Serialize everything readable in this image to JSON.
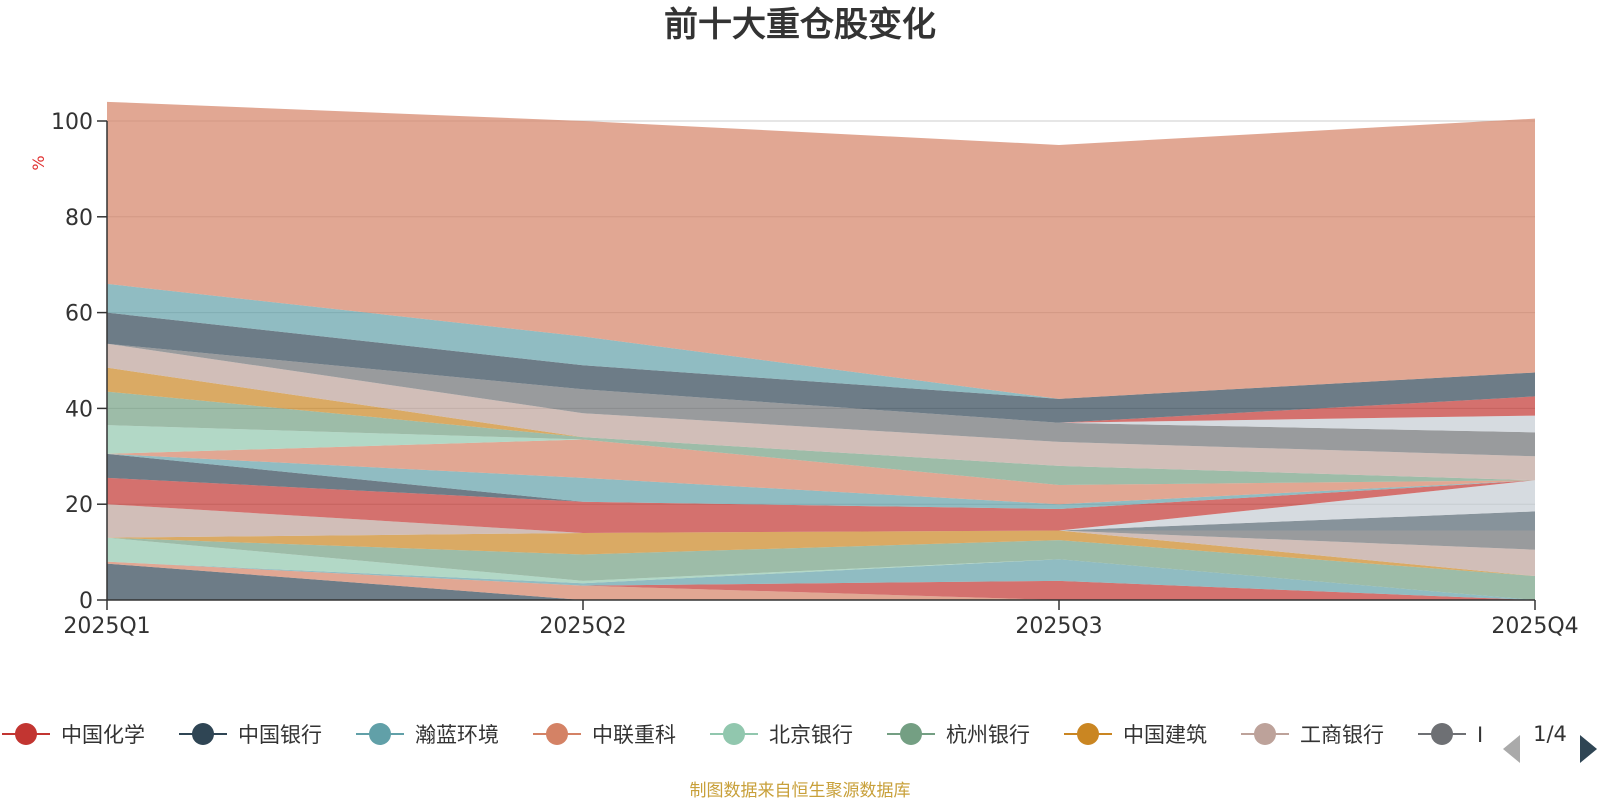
{
  "chart_data": {
    "type": "area",
    "stacked": true,
    "title": "前十大重仓股变化",
    "ylabel": "%",
    "categories": [
      "2025Q1",
      "2025Q2",
      "2025Q3",
      "2025Q4"
    ],
    "ylim": [
      0,
      100
    ],
    "yticks": [
      0,
      20,
      40,
      60,
      80,
      100
    ],
    "grid": true,
    "legend_position": "bottom",
    "legend_page": "1/4",
    "legend_truncated_item": "I",
    "source": "制图数据来自恒生聚源数据库",
    "series": [
      {
        "name": "",
        "color": "#2f4554",
        "values": [
          7.6,
          0.0,
          0.0,
          0.0
        ]
      },
      {
        "name": "",
        "color": "#d48265",
        "values": [
          0.4,
          3.0,
          0.0,
          0.0
        ]
      },
      {
        "name": "",
        "color": "#c23531",
        "values": [
          0.0,
          0.0,
          4.0,
          0.0
        ]
      },
      {
        "name": "",
        "color": "#61a0a8",
        "values": [
          0.0,
          0.5,
          4.5,
          0.0
        ]
      },
      {
        "name": "",
        "color": "#91c7ae",
        "values": [
          5.0,
          0.5,
          0.0,
          0.0
        ]
      },
      {
        "name": "",
        "color": "#749f83",
        "values": [
          0.0,
          5.5,
          4.0,
          5.0
        ]
      },
      {
        "name": "",
        "color": "#ca8622",
        "values": [
          0.0,
          4.5,
          2.0,
          0.0
        ]
      },
      {
        "name": "",
        "color": "#bda29a",
        "values": [
          7.0,
          0.0,
          0.0,
          5.5
        ]
      },
      {
        "name": "",
        "color": "#6e7074",
        "values": [
          0.0,
          0.0,
          0.0,
          4.0
        ]
      },
      {
        "name": "",
        "color": "#546570",
        "values": [
          0.0,
          0.0,
          0.0,
          4.0
        ]
      },
      {
        "name": "",
        "color": "#c4ccd3",
        "values": [
          0.0,
          0.0,
          0.0,
          6.5
        ]
      },
      {
        "name": "",
        "color": "#c23531",
        "values": [
          5.5,
          6.5,
          4.5,
          0.0
        ]
      },
      {
        "name": "",
        "color": "#2f4554",
        "values": [
          5.0,
          0.0,
          0.0,
          0.0
        ]
      },
      {
        "name": "",
        "color": "#61a0a8",
        "values": [
          0.0,
          5.0,
          1.0,
          0.0
        ]
      },
      {
        "name": "",
        "color": "#d48265",
        "values": [
          0.0,
          8.0,
          4.0,
          0.0
        ]
      },
      {
        "name": "",
        "color": "#91c7ae",
        "values": [
          6.0,
          0.0,
          0.0,
          0.0
        ]
      },
      {
        "name": "",
        "color": "#749f83",
        "values": [
          7.0,
          0.5,
          4.0,
          0.0
        ]
      },
      {
        "name": "",
        "color": "#ca8622",
        "values": [
          5.0,
          0.0,
          0.0,
          0.0
        ]
      },
      {
        "name": "",
        "color": "#bda29a",
        "values": [
          5.0,
          5.0,
          5.0,
          5.0
        ]
      },
      {
        "name": "",
        "color": "#6e7074",
        "values": [
          0.0,
          5.0,
          4.0,
          5.0
        ]
      },
      {
        "name": "",
        "color": "#c4ccd3",
        "values": [
          0.0,
          0.0,
          0.0,
          3.5
        ]
      },
      {
        "name": "",
        "color": "#c23531",
        "values": [
          0.0,
          0.0,
          0.0,
          4.0
        ]
      },
      {
        "name": "",
        "color": "#2f4554",
        "values": [
          6.5,
          5.0,
          5.0,
          5.0
        ]
      },
      {
        "name": "",
        "color": "#61a0a8",
        "values": [
          6.0,
          6.0,
          0.0,
          0.0
        ]
      },
      {
        "name": "",
        "color": "#d48265",
        "values": [
          38.0,
          45.0,
          53.0,
          53.0
        ]
      }
    ]
  },
  "legend": [
    {
      "name": "中国化学",
      "color": "#c23531"
    },
    {
      "name": "中国银行",
      "color": "#2f4554"
    },
    {
      "name": "瀚蓝环境",
      "color": "#61a0a8"
    },
    {
      "name": "中联重科",
      "color": "#d48265"
    },
    {
      "name": "北京银行",
      "color": "#91c7ae"
    },
    {
      "name": "杭州银行",
      "color": "#749f83"
    },
    {
      "name": "中国建筑",
      "color": "#ca8622"
    },
    {
      "name": "工商银行",
      "color": "#bda29a"
    },
    {
      "name": "I",
      "color": "#6e7074"
    }
  ]
}
